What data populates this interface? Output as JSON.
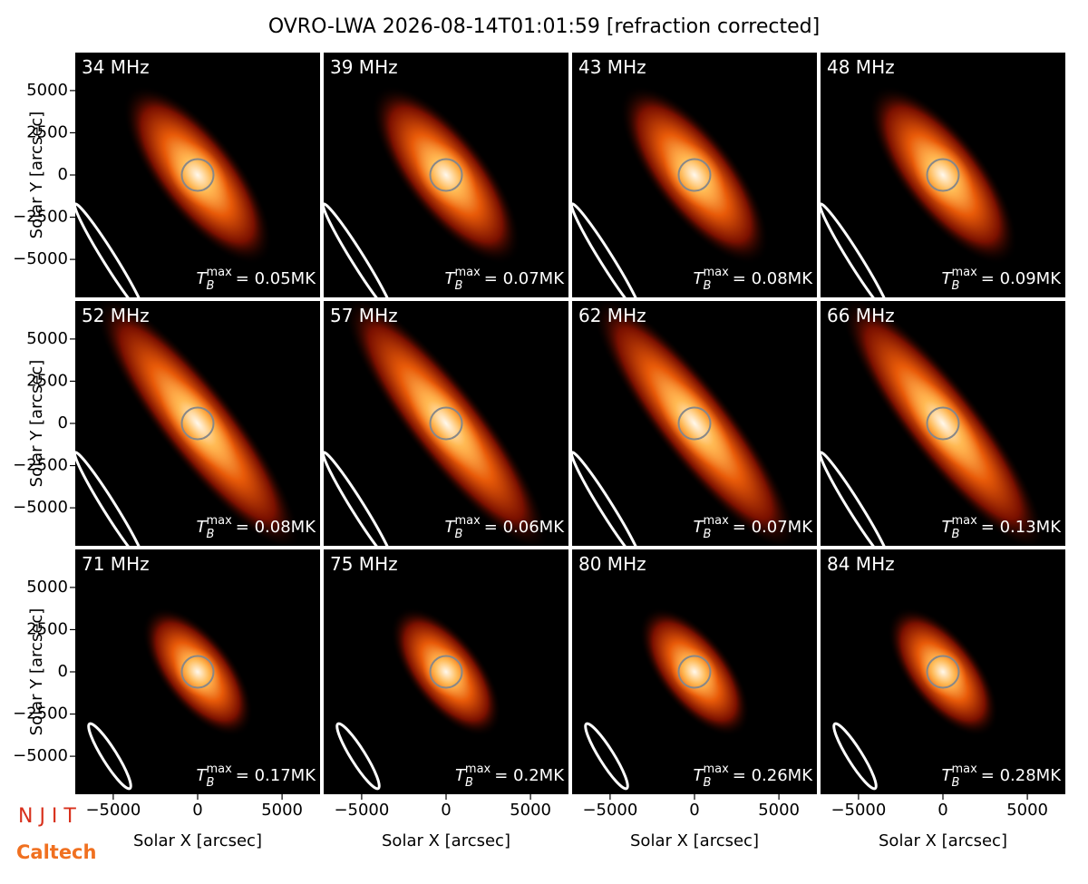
{
  "chart_data": {
    "type": "image-grid",
    "title": "OVRO-LWA 2026-08-14T01:01:59 [refraction corrected]",
    "xlabel": "Solar X [arcsec]",
    "ylabel": "Solar Y [arcsec]",
    "xlim": [
      -7250,
      7250
    ],
    "ylim": [
      -7250,
      7250
    ],
    "xticks": [
      {
        "value": -5000,
        "label": "−5000"
      },
      0,
      5000
    ],
    "yticks": [
      {
        "value": -5000,
        "label": "−5000"
      },
      {
        "value": -2500,
        "label": "−2500"
      },
      0,
      2500,
      5000
    ],
    "tb_symbol": "T",
    "tb_sub": "B",
    "tb_sup": "max",
    "panels": [
      {
        "label": "34 MHz",
        "tb_max": "= 0.05MK"
      },
      {
        "label": "39 MHz",
        "tb_max": "= 0.07MK"
      },
      {
        "label": "43 MHz",
        "tb_max": "= 0.08MK"
      },
      {
        "label": "48 MHz",
        "tb_max": "= 0.09MK"
      },
      {
        "label": "52 MHz",
        "tb_max": "= 0.08MK"
      },
      {
        "label": "57 MHz",
        "tb_max": "= 0.06MK"
      },
      {
        "label": "62 MHz",
        "tb_max": "= 0.07MK"
      },
      {
        "label": "66 MHz",
        "tb_max": "= 0.13MK"
      },
      {
        "label": "71 MHz",
        "tb_max": "= 0.17MK"
      },
      {
        "label": "75 MHz",
        "tb_max": "= 0.2MK"
      },
      {
        "label": "80 MHz",
        "tb_max": "= 0.26MK"
      },
      {
        "label": "84 MHz",
        "tb_max": "= 0.28MK"
      }
    ]
  },
  "logos": {
    "njit": "N J I T",
    "caltech": "Caltech"
  }
}
